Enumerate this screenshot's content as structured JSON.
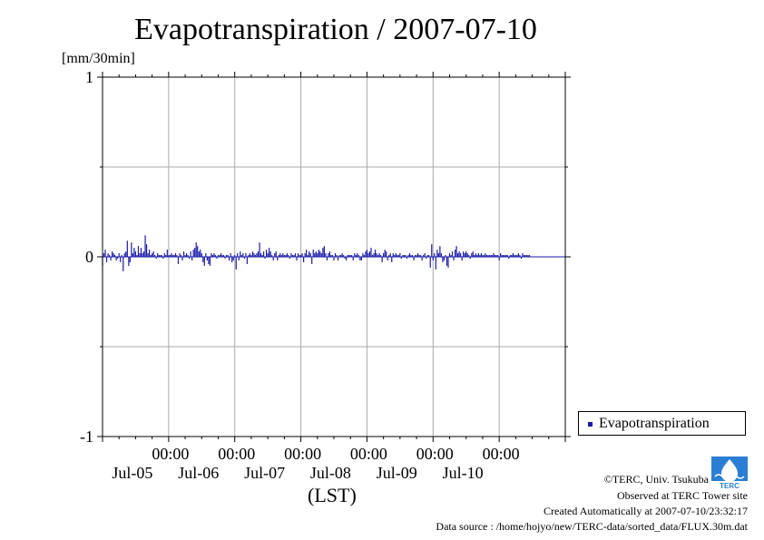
{
  "page": {
    "title": "Evapotranspiration / 2007-07-10",
    "y_unit": "[mm/30min]",
    "x_label": "(LST)",
    "credits": {
      "copyright": "©TERC, Univ. Tsukuba",
      "observed": "Observed at TERC Tower site",
      "created": "Created Automatically at 2007-07-10/23:32:17",
      "source": "Data source : /home/hojyo/new/TERC-data/sorted_data/FLUX.30m.dat"
    },
    "logo_text": "TERC"
  },
  "colors": {
    "series": "#1a1aaa",
    "grid": "#aaaaaa",
    "axis": "#000000",
    "logo": "#2a7fd4"
  },
  "chart_data": {
    "type": "bar",
    "title": "Evapotranspiration / 2007-07-10",
    "ylabel": "[mm/30min]",
    "xlabel": "(LST)",
    "ylim": [
      -1,
      1
    ],
    "yticks": [
      -1,
      0,
      1
    ],
    "xlim": [
      "2007-07-04 00:00",
      "2007-07-11 00:00"
    ],
    "xticks": [
      {
        "time": "00:00",
        "date": "Jul-05"
      },
      {
        "time": "00:00",
        "date": "Jul-06"
      },
      {
        "time": "00:00",
        "date": "Jul-07"
      },
      {
        "time": "00:00",
        "date": "Jul-08"
      },
      {
        "time": "00:00",
        "date": "Jul-09"
      },
      {
        "time": "00:00",
        "date": "Jul-10"
      }
    ],
    "grid": true,
    "legend": "right",
    "interval": "30min",
    "series": [
      {
        "name": "Evapotranspiration",
        "start": "2007-07-04 00:00",
        "values": [
          -0.05,
          0.02,
          0.04,
          -0.03,
          0.02,
          0.01,
          -0.02,
          0.03,
          0.02,
          0.01,
          -0.02,
          -0.01,
          0.02,
          -0.03,
          0.01,
          -0.08,
          0.02,
          0.03,
          0.09,
          -0.05,
          -0.03,
          0.08,
          0.02,
          0.05,
          0.03,
          0.01,
          0.06,
          0.02,
          0.05,
          0.02,
          0.03,
          0.12,
          0.07,
          0.02,
          0.04,
          0.01,
          0.02,
          0.03,
          0.01,
          -0.01,
          0.02,
          0.01,
          0.01,
          0.01,
          -0.01,
          0.02,
          0.01,
          0.04,
          0.01,
          0.01,
          0.02,
          0.01,
          0.01,
          0.02,
          0.01,
          -0.04,
          0.02,
          0.01,
          -0.02,
          0.03,
          0.01,
          0.02,
          0.01,
          -0.01,
          0.03,
          -0.02,
          0.04,
          0.05,
          0.08,
          0.06,
          0.03,
          0.04,
          0.02,
          -0.03,
          -0.05,
          0.02,
          -0.02,
          -0.04,
          -0.05,
          0.02,
          0.01,
          0.02,
          0.01,
          -0.01,
          0.01,
          0.01,
          0.02,
          0.01,
          0.01,
          -0.01,
          0.01,
          0.01,
          -0.02,
          0.02,
          -0.03,
          -0.02,
          0.01,
          -0.07,
          0.02,
          -0.02,
          0.03,
          0.01,
          0.02,
          -0.01,
          0.02,
          -0.04,
          0.01,
          0.02,
          0.01,
          0.03,
          0.02,
          0.01,
          0.02,
          0.03,
          0.08,
          0.02,
          0.01,
          0.03,
          -0.01,
          0.04,
          0.02,
          0.05,
          0.03,
          0.01,
          -0.02,
          0.02,
          0.03,
          -0.02,
          0.01,
          0.02,
          0.01,
          0.02,
          0.01,
          0.01,
          0.02,
          0.01,
          -0.01,
          0.02,
          0.01,
          0.01,
          0.02,
          -0.02,
          0.02,
          0.01,
          0.01,
          0.02,
          -0.03,
          0.02,
          0.04,
          0.01,
          0.03,
          0.02,
          -0.04,
          0.04,
          0.02,
          0.03,
          0.02,
          0.04,
          0.03,
          0.02,
          0.05,
          0.06,
          0.02,
          -0.02,
          0.02,
          0.03,
          0.01,
          0.01,
          -0.02,
          0.02,
          0.01,
          -0.02,
          0.01,
          0.01,
          0.02,
          0.01,
          -0.01,
          -0.02,
          0.01,
          0.01,
          0.01,
          0.01,
          -0.02,
          0.02,
          0.01,
          0.02,
          0.01,
          -0.02,
          -0.02,
          0.02,
          0.01,
          0.03,
          0.04,
          0.02,
          0.03,
          0.05,
          0.01,
          0.02,
          0.04,
          0.02,
          0.01,
          0.02,
          0.01,
          -0.03,
          0.02,
          0.04,
          0.03,
          -0.02,
          0.01,
          0.02,
          -0.03,
          0.02,
          0.01,
          0.02,
          0.01,
          0.01,
          0.02,
          -0.01,
          0.01,
          0.01,
          0.01,
          -0.01,
          0.01,
          0.02,
          0.01,
          0.01,
          -0.02,
          0.01,
          0.01,
          0.02,
          0.01,
          0.01,
          -0.02,
          0.01,
          0.02,
          -0.01,
          0.01,
          0.01,
          -0.06,
          0.07,
          -0.02,
          0.02,
          -0.07,
          0.04,
          0.02,
          0.06,
          0.02,
          -0.03,
          -0.02,
          0.01,
          -0.05,
          -0.06,
          0.02,
          0.01,
          0.03,
          -0.02,
          0.04,
          0.06,
          0.02,
          0.03,
          0.02,
          -0.02,
          0.03,
          0.02,
          0.03,
          0.02,
          0.01,
          -0.01,
          0.02,
          0.03,
          0.01,
          0.02,
          0.01,
          0.02,
          0.01,
          0.02,
          0.01,
          0.01,
          0.02,
          0.01,
          0.01,
          0.01,
          0.01,
          0.01,
          0.02,
          0.01,
          0.01,
          0.01,
          -0.02,
          0.02,
          0.01,
          0.01,
          0.01,
          0.01,
          0.01,
          -0.01,
          0.01,
          0.01,
          0.02,
          0.01,
          0.01,
          0.01,
          0.02,
          0.01,
          -0.01,
          0.02,
          0.01,
          0.01,
          0.01,
          0.01,
          0.01
        ]
      }
    ]
  }
}
